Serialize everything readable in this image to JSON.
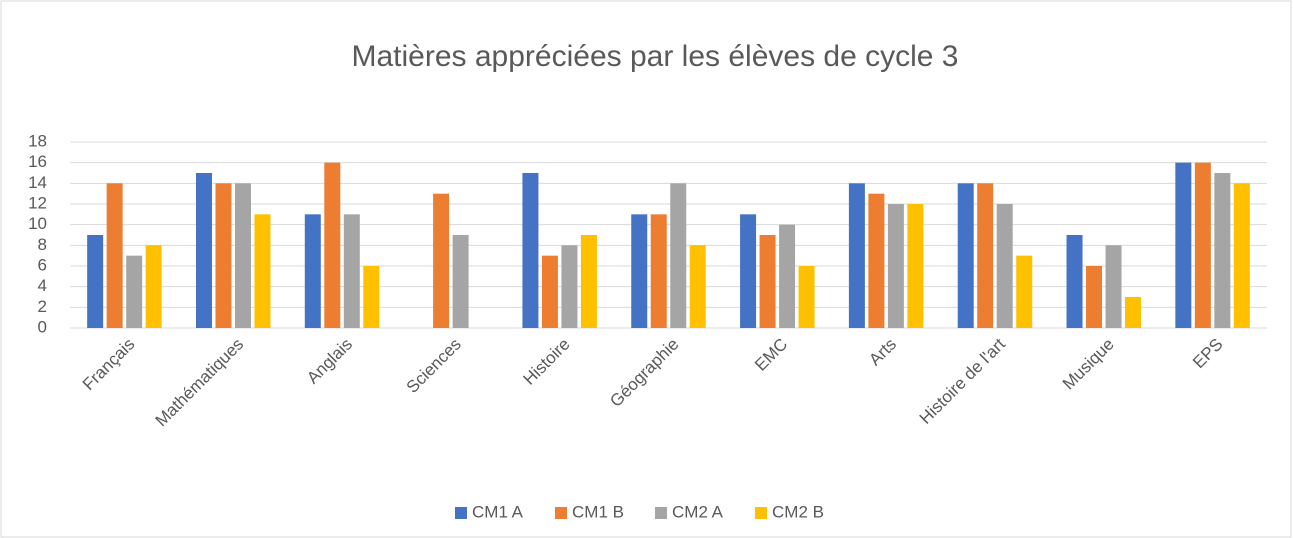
{
  "chart_data": {
    "type": "bar",
    "title": "Matières appréciées par les élèves de cycle 3",
    "categories": [
      "Français",
      "Mathématiques",
      "Anglais",
      "Sciences",
      "Histoire",
      "Géographie",
      "EMC",
      "Arts",
      "Histoire de l'art",
      "Musique",
      "EPS"
    ],
    "series": [
      {
        "name": "CM1 A",
        "color": "#4472c4",
        "values": [
          9,
          15,
          11,
          0,
          15,
          11,
          11,
          14,
          14,
          9,
          16
        ]
      },
      {
        "name": "CM1 B",
        "color": "#ed7d31",
        "values": [
          14,
          14,
          16,
          13,
          7,
          11,
          9,
          13,
          14,
          6,
          16
        ]
      },
      {
        "name": "CM2 A",
        "color": "#a5a5a5",
        "values": [
          7,
          14,
          11,
          9,
          8,
          14,
          10,
          12,
          12,
          8,
          15
        ]
      },
      {
        "name": "CM2 B",
        "color": "#ffc000",
        "values": [
          8,
          11,
          6,
          0,
          9,
          8,
          6,
          12,
          7,
          3,
          14
        ]
      }
    ],
    "ylim": [
      0,
      18
    ],
    "yticks": [
      0,
      2,
      4,
      6,
      8,
      10,
      12,
      14,
      16,
      18
    ],
    "grid": true,
    "legend": "bottom"
  }
}
